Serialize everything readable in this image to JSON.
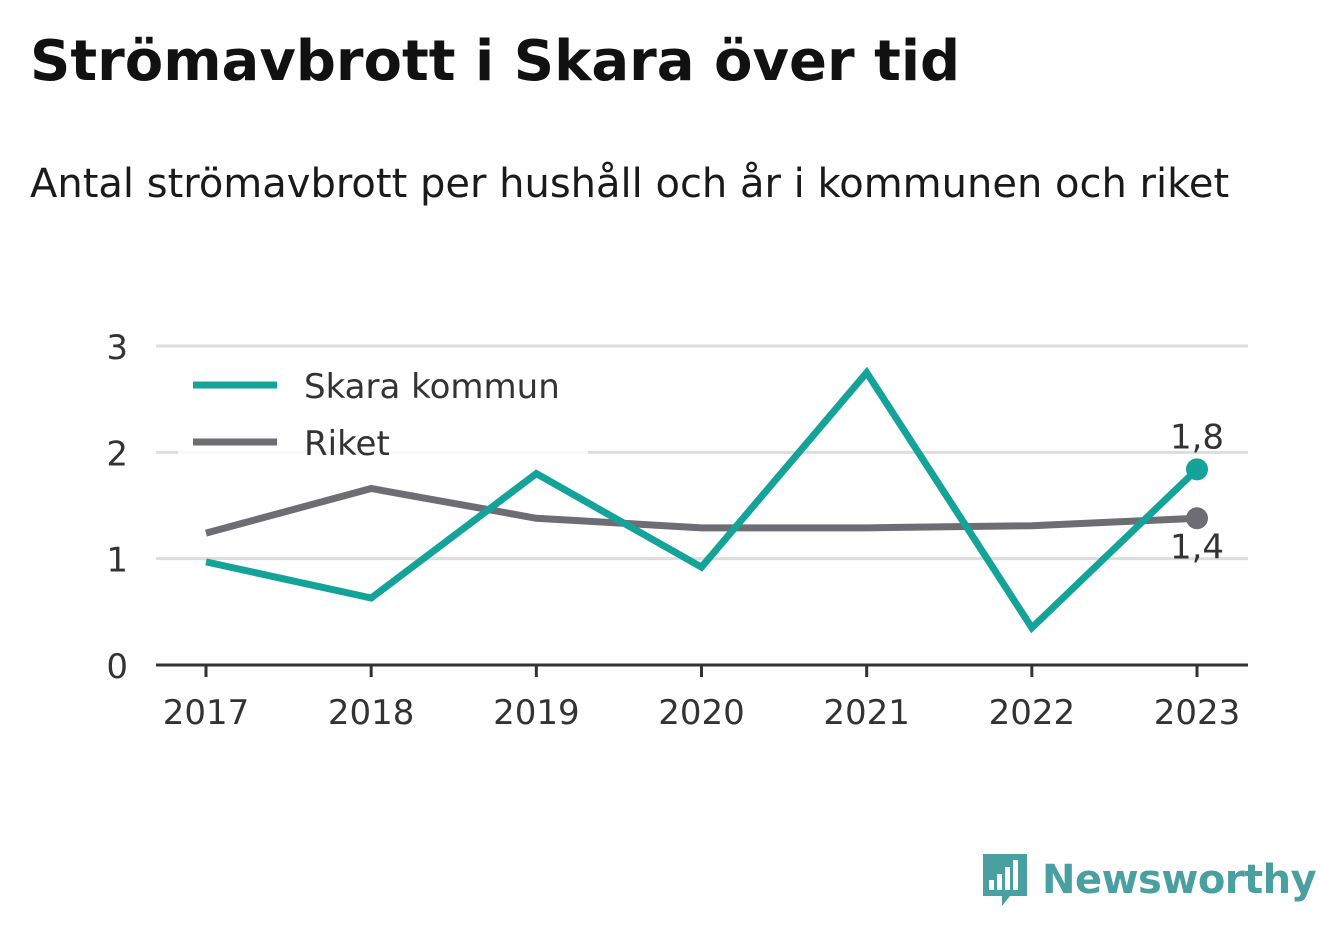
{
  "chart_data": {
    "type": "line",
    "title": "Strömavbrott i Skara över tid",
    "subtitle": "Antal strömavbrott per hushåll och år i kommunen och riket",
    "categories": [
      "2017",
      "2018",
      "2019",
      "2020",
      "2021",
      "2022",
      "2023"
    ],
    "x": [
      2017,
      2018,
      2019,
      2020,
      2021,
      2022,
      2023
    ],
    "series": [
      {
        "name": "Skara kommun",
        "color": "#13a398",
        "values": [
          0.97,
          0.63,
          1.8,
          0.92,
          2.75,
          0.35,
          1.84
        ],
        "end_label": "1,8"
      },
      {
        "name": "Riket",
        "color": "#6e6d73",
        "values": [
          1.24,
          1.66,
          1.38,
          1.29,
          1.29,
          1.31,
          1.38
        ],
        "end_label": "1,4"
      }
    ],
    "yticks": [
      "0",
      "1",
      "2",
      "3"
    ],
    "ytick_values": [
      0,
      1,
      2,
      3
    ],
    "ylim": [
      0,
      3
    ],
    "xlabel": "",
    "ylabel": "",
    "grid": true,
    "legend_position": "top-left"
  },
  "branding": {
    "name": "Newsworthy",
    "logo_icon": "bar-chart-speech-bubble-icon",
    "color": "#4a9fa0"
  }
}
